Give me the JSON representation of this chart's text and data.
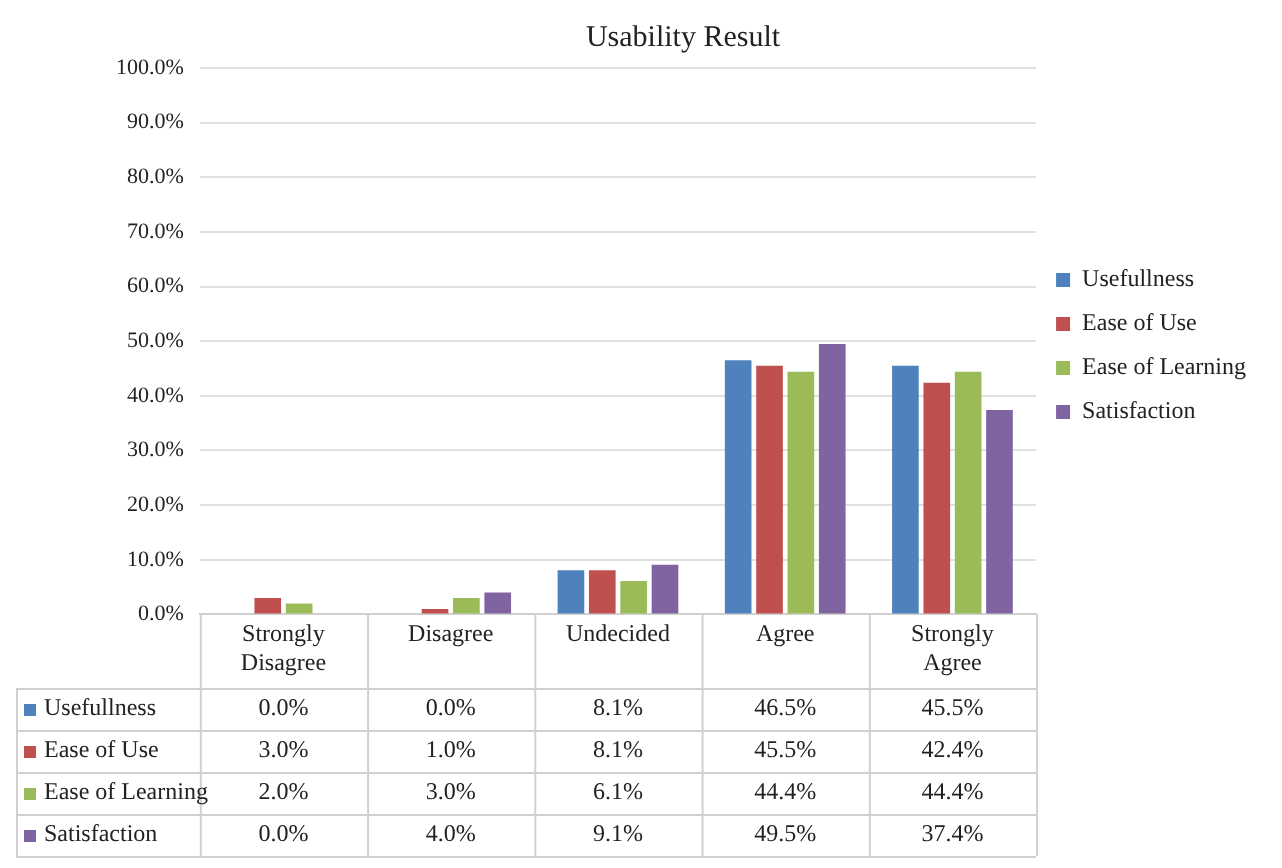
{
  "chart_data": {
    "type": "bar",
    "title": "Usability Result",
    "categories": [
      "Strongly Disagree",
      "Disagree",
      "Undecided",
      "Agree",
      "Strongly Agree"
    ],
    "series": [
      {
        "name": "Usefullness",
        "color": "#4f81bd",
        "values": [
          0.0,
          0.0,
          8.1,
          46.5,
          45.5
        ],
        "value_labels": [
          "0.0%",
          "0.0%",
          "8.1%",
          "46.5%",
          "45.5%"
        ]
      },
      {
        "name": "Ease of Use",
        "color": "#c0504d",
        "values": [
          3.0,
          1.0,
          8.1,
          45.5,
          42.4
        ],
        "value_labels": [
          "3.0%",
          "1.0%",
          "8.1%",
          "45.5%",
          "42.4%"
        ]
      },
      {
        "name": "Ease of Learning",
        "color": "#9bbb59",
        "values": [
          2.0,
          3.0,
          6.1,
          44.4,
          44.4
        ],
        "value_labels": [
          "2.0%",
          "3.0%",
          "6.1%",
          "44.4%",
          "44.4%"
        ]
      },
      {
        "name": "Satisfaction",
        "color": "#8064a2",
        "values": [
          0.0,
          4.0,
          9.1,
          49.5,
          37.4
        ],
        "value_labels": [
          "0.0%",
          "4.0%",
          "9.1%",
          "49.5%",
          "37.4%"
        ]
      }
    ],
    "ylim": [
      0,
      100
    ],
    "yticks": [
      {
        "value": 0,
        "label": "0.0%"
      },
      {
        "value": 10,
        "label": "10.0%"
      },
      {
        "value": 20,
        "label": "20.0%"
      },
      {
        "value": 30,
        "label": "30.0%"
      },
      {
        "value": 40,
        "label": "40.0%"
      },
      {
        "value": 50,
        "label": "50.0%"
      },
      {
        "value": 60,
        "label": "60.0%"
      },
      {
        "value": 70,
        "label": "70.0%"
      },
      {
        "value": 80,
        "label": "80.0%"
      },
      {
        "value": 90,
        "label": "90.0%"
      },
      {
        "value": 100,
        "label": "100.0%"
      }
    ],
    "grid": "y",
    "legend": "right"
  }
}
